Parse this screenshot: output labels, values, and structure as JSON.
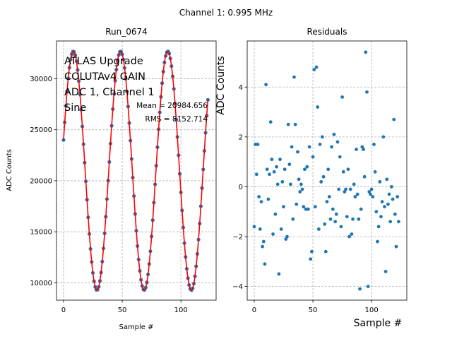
{
  "figure": {
    "suptitle": "Channel 1: 0.995 MHz"
  },
  "chart_data": [
    {
      "type": "line",
      "title": "Run_0674",
      "xlabel": "Sample #",
      "ylabel": "ADC Counts",
      "xlim": [
        -6,
        130
      ],
      "ylim": [
        8300,
        33700
      ],
      "xticks": [
        0,
        50,
        100
      ],
      "yticks": [
        10000,
        15000,
        20000,
        25000,
        30000
      ],
      "grid": true,
      "annotations": [
        "ATLAS Upgrade",
        "COLUTAv4 GAIN",
        "ADC 1, Channel 1",
        "Sine"
      ],
      "stats": [
        "Mean = 20984.656",
        "RMS = 8152.714"
      ],
      "signal": {
        "mean": 20984.656,
        "amplitude": 11700,
        "period_samples": 40.2,
        "initial_value": 24000,
        "n_samples": 124
      },
      "series": [
        {
          "kind": "scatter",
          "color": "#1f77b4"
        },
        {
          "kind": "fit",
          "color": "#ff0000"
        }
      ]
    },
    {
      "type": "scatter",
      "title": "Residuals",
      "xlabel": "Sample #",
      "ylabel": "ADC Counts",
      "xlim": [
        -6,
        130
      ],
      "ylim": [
        -4.55,
        5.85
      ],
      "xticks": [
        0,
        50,
        100
      ],
      "yticks": [
        -4,
        -2,
        0,
        2,
        4
      ],
      "grid": true,
      "color": "#1f77b4",
      "points": [
        [
          0,
          -1.6
        ],
        [
          1,
          1.7
        ],
        [
          2,
          0.5
        ],
        [
          3,
          1.7
        ],
        [
          4,
          -0.4
        ],
        [
          5,
          -1.7
        ],
        [
          6,
          -0.6
        ],
        [
          7,
          -2.4
        ],
        [
          8,
          -2.2
        ],
        [
          9,
          -3.1
        ],
        [
          10,
          4.1
        ],
        [
          11,
          0.7
        ],
        [
          12,
          -0.5
        ],
        [
          13,
          0.5
        ],
        [
          14,
          2.6
        ],
        [
          15,
          1.1
        ],
        [
          16,
          -1.9
        ],
        [
          17,
          0.6
        ],
        [
          18,
          -1.1
        ],
        [
          19,
          0.8
        ],
        [
          20,
          0.1
        ],
        [
          21,
          -3.5
        ],
        [
          22,
          1.1
        ],
        [
          23,
          -1.7
        ],
        [
          24,
          0.2
        ],
        [
          25,
          -0.8
        ],
        [
          26,
          0.7
        ],
        [
          27,
          -2.1
        ],
        [
          28,
          -2.0
        ],
        [
          29,
          2.5
        ],
        [
          30,
          0.9
        ],
        [
          31,
          0.1
        ],
        [
          32,
          1.6
        ],
        [
          33,
          -1.3
        ],
        [
          34,
          4.4
        ],
        [
          35,
          2.5
        ],
        [
          36,
          -0.7
        ],
        [
          37,
          1.4
        ],
        [
          38,
          0.3
        ],
        [
          39,
          -0.2
        ],
        [
          40,
          0.1
        ],
        [
          41,
          -0.1
        ],
        [
          42,
          -0.8
        ],
        [
          43,
          0.7
        ],
        [
          44,
          -0.9
        ],
        [
          45,
          0.8
        ],
        [
          46,
          -0.9
        ],
        [
          47,
          1.6
        ],
        [
          48,
          -2.9
        ],
        [
          49,
          -2.6
        ],
        [
          50,
          1.2
        ],
        [
          51,
          4.7
        ],
        [
          52,
          -0.8
        ],
        [
          53,
          4.8
        ],
        [
          54,
          3.2
        ],
        [
          55,
          -1.7
        ],
        [
          56,
          1.7
        ],
        [
          57,
          0.2
        ],
        [
          58,
          2.0
        ],
        [
          59,
          0.4
        ],
        [
          60,
          -1.5
        ],
        [
          61,
          -2.6
        ],
        [
          62,
          -0.6
        ],
        [
          63,
          0.7
        ],
        [
          64,
          -0.4
        ],
        [
          65,
          -1.3
        ],
        [
          66,
          1.6
        ],
        [
          67,
          -0.9
        ],
        [
          68,
          2.1
        ],
        [
          69,
          -1.4
        ],
        [
          70,
          -1.1
        ],
        [
          71,
          1.8
        ],
        [
          72,
          -0.1
        ],
        [
          73,
          1.2
        ],
        [
          74,
          -1.6
        ],
        [
          75,
          3.6
        ],
        [
          76,
          0.6
        ],
        [
          77,
          -0.2
        ],
        [
          78,
          -0.1
        ],
        [
          79,
          -1.2
        ],
        [
          80,
          0.7
        ],
        [
          81,
          -2.0
        ],
        [
          82,
          -0.1
        ],
        [
          83,
          -1.9
        ],
        [
          84,
          -1.3
        ],
        [
          85,
          0.1
        ],
        [
          86,
          -0.4
        ],
        [
          87,
          1.5
        ],
        [
          88,
          -0.3
        ],
        [
          89,
          -1.3
        ],
        [
          90,
          -4.1
        ],
        [
          91,
          -0.9
        ],
        [
          92,
          1.6
        ],
        [
          93,
          1.5
        ],
        [
          94,
          0.4
        ],
        [
          95,
          5.4
        ],
        [
          96,
          3.8
        ],
        [
          97,
          -4.0
        ],
        [
          98,
          -0.2
        ],
        [
          99,
          -0.3
        ],
        [
          100,
          -0.1
        ],
        [
          101,
          -0.4
        ],
        [
          102,
          1.7
        ],
        [
          103,
          0.6
        ],
        [
          104,
          -1.0
        ],
        [
          105,
          -2.2
        ],
        [
          106,
          -1.6
        ],
        [
          107,
          0.2
        ],
        [
          108,
          -1.2
        ],
        [
          109,
          -0.6
        ],
        [
          110,
          2.0
        ],
        [
          111,
          -0.8
        ],
        [
          112,
          -3.4
        ],
        [
          113,
          0.3
        ],
        [
          114,
          -0.7
        ],
        [
          115,
          -0.3
        ],
        [
          116,
          -1.4
        ],
        [
          117,
          0.0
        ],
        [
          118,
          -0.5
        ],
        [
          119,
          2.7
        ],
        [
          120,
          -1.1
        ],
        [
          121,
          -2.4
        ],
        [
          122,
          -0.4
        ],
        [
          123,
          -1.4
        ]
      ]
    }
  ]
}
